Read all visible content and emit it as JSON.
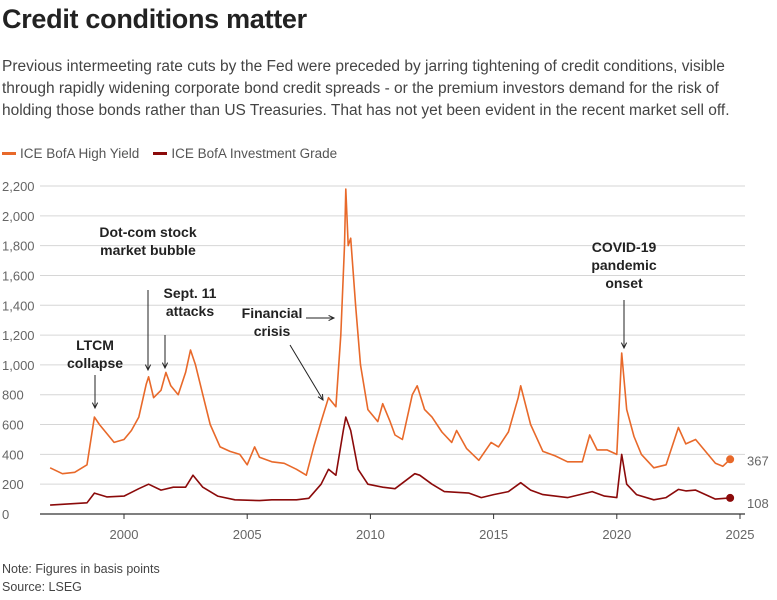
{
  "chart_data": {
    "type": "line",
    "title": "Credit conditions matter",
    "subtitle": "Previous intermeeting rate cuts by the Fed were preceded by jarring tightening of credit conditions, visible through rapidly widening corporate bond credit spreads - or the premium investors demand for the risk of holding those bonds rather than US Treasuries. That has not yet been evident in the recent market sell off.",
    "xlim": [
      1997,
      2025
    ],
    "ylim": [
      0,
      2200
    ],
    "x_ticks": [
      "2000",
      "2005",
      "2010",
      "2015",
      "2020",
      "2025"
    ],
    "y_ticks": [
      "0",
      "200",
      "400",
      "600",
      "800",
      "1,000",
      "1,200",
      "1,400",
      "1,600",
      "1,800",
      "2,000",
      "2,200"
    ],
    "grid": "horizontal",
    "legend_placement": "top-left",
    "series": [
      {
        "name": "ICE BofA High Yield",
        "color": "#E8692A",
        "end_label": "367",
        "x": [
          1997.0,
          1997.5,
          1998.0,
          1998.5,
          1998.8,
          1999.0,
          1999.3,
          1999.6,
          2000.0,
          2000.3,
          2000.6,
          2000.9,
          2001.0,
          2001.2,
          2001.5,
          2001.7,
          2001.9,
          2002.2,
          2002.5,
          2002.7,
          2002.9,
          2003.2,
          2003.5,
          2003.9,
          2004.3,
          2004.7,
          2005.0,
          2005.3,
          2005.5,
          2006.0,
          2006.5,
          2007.0,
          2007.4,
          2007.7,
          2008.0,
          2008.3,
          2008.6,
          2008.8,
          2008.95,
          2009.0,
          2009.1,
          2009.2,
          2009.4,
          2009.6,
          2009.9,
          2010.3,
          2010.5,
          2010.8,
          2011.0,
          2011.3,
          2011.7,
          2011.9,
          2012.2,
          2012.5,
          2012.9,
          2013.3,
          2013.5,
          2013.9,
          2014.4,
          2014.9,
          2015.2,
          2015.6,
          2016.0,
          2016.1,
          2016.5,
          2017.0,
          2017.5,
          2018.0,
          2018.6,
          2018.9,
          2019.2,
          2019.6,
          2020.0,
          2020.2,
          2020.4,
          2020.7,
          2021.0,
          2021.5,
          2022.0,
          2022.5,
          2022.8,
          2023.2,
          2023.6,
          2024.0,
          2024.3,
          2024.6
        ],
        "y": [
          310,
          270,
          280,
          330,
          650,
          600,
          540,
          480,
          500,
          560,
          650,
          870,
          920,
          780,
          830,
          950,
          860,
          800,
          950,
          1100,
          1000,
          800,
          600,
          450,
          420,
          400,
          330,
          450,
          380,
          350,
          340,
          300,
          260,
          450,
          620,
          780,
          720,
          1200,
          1800,
          2180,
          1800,
          1850,
          1400,
          1000,
          700,
          620,
          740,
          620,
          530,
          500,
          800,
          860,
          700,
          650,
          550,
          480,
          560,
          440,
          360,
          480,
          450,
          550,
          780,
          860,
          600,
          420,
          390,
          350,
          350,
          530,
          430,
          430,
          400,
          1080,
          700,
          520,
          400,
          310,
          330,
          580,
          470,
          500,
          420,
          340,
          320,
          367
        ]
      },
      {
        "name": "ICE BofA Investment Grade",
        "color": "#8B0A0A",
        "end_label": "108",
        "x": [
          1997.0,
          1998.5,
          1998.8,
          1999.3,
          2000.0,
          2000.6,
          2001.0,
          2001.5,
          2002.0,
          2002.5,
          2002.8,
          2003.2,
          2003.8,
          2004.5,
          2005.5,
          2006.0,
          2007.0,
          2007.5,
          2008.0,
          2008.3,
          2008.6,
          2008.9,
          2009.0,
          2009.2,
          2009.5,
          2009.9,
          2010.5,
          2011.0,
          2011.8,
          2012.0,
          2012.5,
          2013.0,
          2014.0,
          2014.5,
          2015.0,
          2015.6,
          2016.1,
          2016.5,
          2017.0,
          2018.0,
          2019.0,
          2019.5,
          2020.0,
          2020.2,
          2020.4,
          2020.8,
          2021.5,
          2022.0,
          2022.5,
          2022.8,
          2023.2,
          2023.6,
          2024.0,
          2024.6
        ],
        "y": [
          60,
          75,
          140,
          115,
          120,
          170,
          200,
          160,
          180,
          180,
          260,
          180,
          120,
          95,
          90,
          95,
          95,
          105,
          200,
          300,
          260,
          560,
          650,
          560,
          300,
          200,
          180,
          170,
          270,
          260,
          200,
          150,
          140,
          110,
          130,
          150,
          210,
          160,
          130,
          110,
          150,
          120,
          110,
          400,
          200,
          130,
          95,
          110,
          165,
          155,
          160,
          130,
          100,
          108
        ]
      }
    ],
    "annotations": [
      {
        "text": [
          "LTCM",
          "collapse"
        ]
      },
      {
        "text": [
          "Dot-com stock",
          "market bubble"
        ]
      },
      {
        "text": [
          "Sept. 11",
          "attacks"
        ]
      },
      {
        "text": [
          "Financial",
          "crisis"
        ]
      },
      {
        "text": [
          "COVID-19",
          "pandemic",
          "onset"
        ]
      }
    ],
    "note": "Note: Figures in basis points",
    "source": "Source: LSEG"
  }
}
